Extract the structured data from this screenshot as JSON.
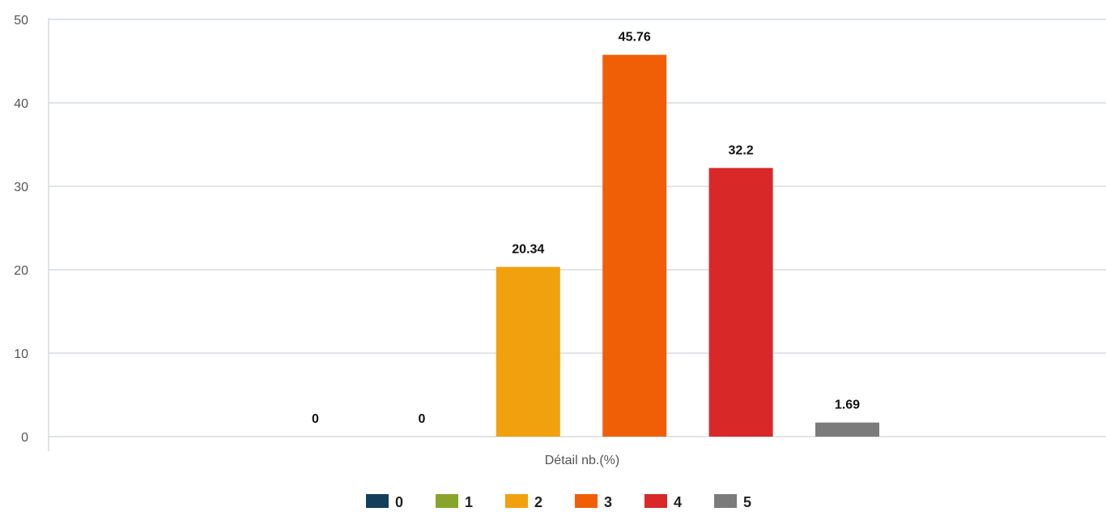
{
  "chart_data": {
    "type": "bar",
    "categories": [
      "Détail nb.(%)"
    ],
    "series": [
      {
        "name": "0",
        "values": [
          0
        ],
        "color": "#123e5c"
      },
      {
        "name": "1",
        "values": [
          0
        ],
        "color": "#87a52b"
      },
      {
        "name": "2",
        "values": [
          20.34
        ],
        "color": "#f0a10d"
      },
      {
        "name": "3",
        "values": [
          45.76
        ],
        "color": "#f05f06"
      },
      {
        "name": "4",
        "values": [
          32.2
        ],
        "color": "#d92828"
      },
      {
        "name": "5",
        "values": [
          1.69
        ],
        "color": "#7b7b7b"
      }
    ],
    "data_labels": [
      "0",
      "0",
      "20.34",
      "45.76",
      "32.2",
      "1.69"
    ],
    "ylim": [
      0,
      50
    ],
    "yticks": [
      "0",
      "10",
      "20",
      "30",
      "40",
      "50"
    ],
    "grid": true,
    "legend_position": "bottom-center"
  }
}
